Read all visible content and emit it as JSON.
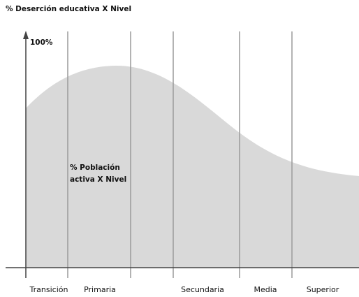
{
  "title": "% Deserción educativa X Nivel",
  "y_axis_label": "100%",
  "area_label": [
    "% Población",
    "activa X Nivel"
  ],
  "levels": [
    "Transición",
    "Primaria",
    "Secundaria",
    "Media",
    "Superior"
  ]
}
